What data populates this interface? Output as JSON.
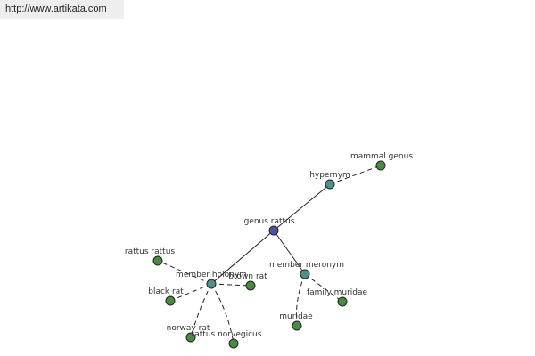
{
  "header": {
    "url": "http://www.artikata.com"
  },
  "nodes": [
    {
      "label": "genus rattus"
    },
    {
      "label": "hypernym"
    },
    {
      "label": "mammal genus"
    },
    {
      "label": "member holonym"
    },
    {
      "label": "member meronym"
    },
    {
      "label": "rattus rattus"
    },
    {
      "label": "brown rat"
    },
    {
      "label": "black rat"
    },
    {
      "label": "norway rat"
    },
    {
      "label": "rattus norvegicus"
    },
    {
      "label": "muridae"
    },
    {
      "label": "family muridae"
    }
  ]
}
